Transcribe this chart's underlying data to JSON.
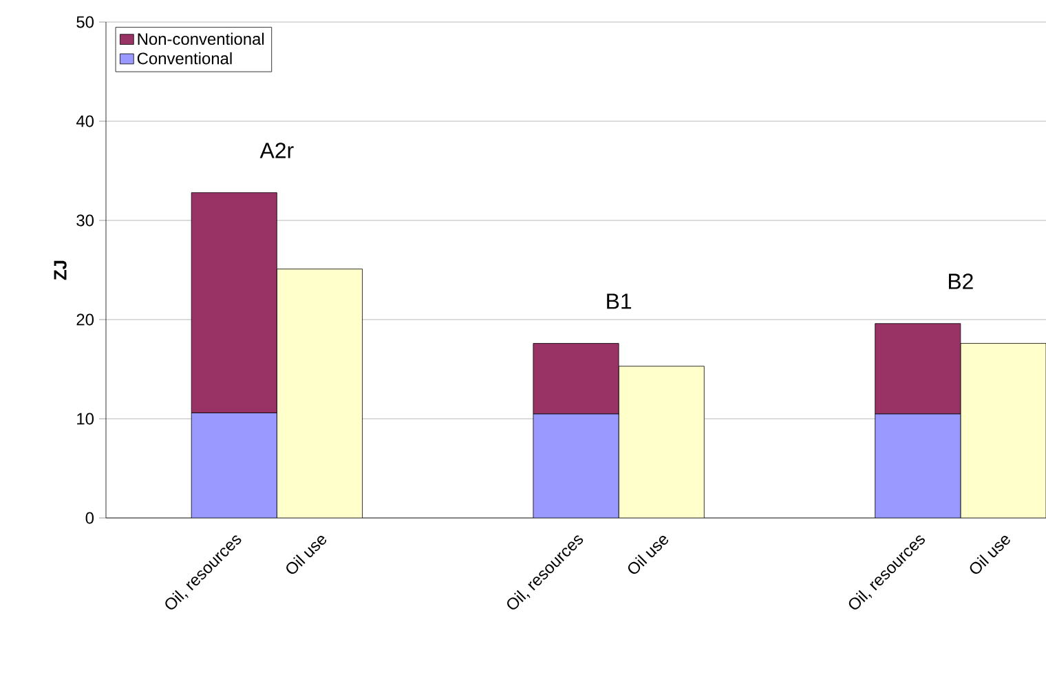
{
  "chart_data": {
    "type": "bar",
    "stacked": true,
    "ylabel": "ZJ",
    "categories": [
      null,
      "Oil, resources",
      "Oil use",
      null,
      null,
      "Oil, resources",
      "Oil use",
      null,
      null,
      "Oil, resources",
      "Oil use"
    ],
    "series": [
      {
        "name": "Conventional",
        "color": "#9999ff",
        "values": [
          null,
          10.6,
          null,
          null,
          null,
          10.5,
          null,
          null,
          null,
          10.5,
          null
        ]
      },
      {
        "name": "Non-conventional",
        "color": "#993366",
        "values": [
          null,
          22.2,
          null,
          null,
          null,
          7.1,
          null,
          null,
          null,
          9.1,
          null
        ]
      },
      {
        "color": "#ffffcc",
        "values": [
          null,
          null,
          25.1,
          null,
          null,
          null,
          15.3,
          null,
          null,
          null,
          17.6
        ]
      }
    ],
    "annotations": [
      "A2r",
      "B1",
      "B2"
    ],
    "ylim": [
      0,
      50
    ],
    "yticks": [
      0,
      10,
      20,
      30,
      40,
      50
    ],
    "grid": "y",
    "legend": "top left"
  }
}
